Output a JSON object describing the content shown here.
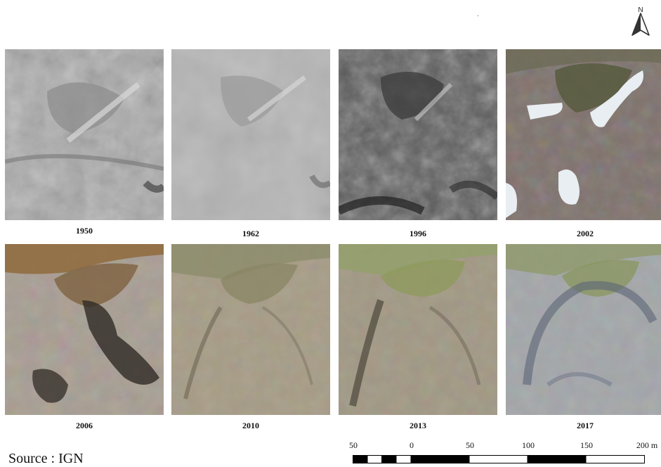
{
  "north_arrow": {
    "letter": "N",
    "icon": "north-arrow-icon"
  },
  "panels": [
    {
      "year": "1950",
      "style": "grayscale-light"
    },
    {
      "year": "1962",
      "style": "grayscale-blurred"
    },
    {
      "year": "1996",
      "style": "grayscale-dark"
    },
    {
      "year": "2002",
      "style": "color-snow"
    },
    {
      "year": "2006",
      "style": "color-brown"
    },
    {
      "year": "2010",
      "style": "color-beige"
    },
    {
      "year": "2013",
      "style": "color-beige-green"
    },
    {
      "year": "2017",
      "style": "color-bluegray"
    }
  ],
  "source": "Source : IGN",
  "scale_bar": {
    "labels": [
      "50",
      "0",
      "50",
      "100",
      "150",
      "200 m"
    ],
    "values": [
      -50,
      0,
      50,
      100,
      150,
      200
    ],
    "unit": "m"
  }
}
